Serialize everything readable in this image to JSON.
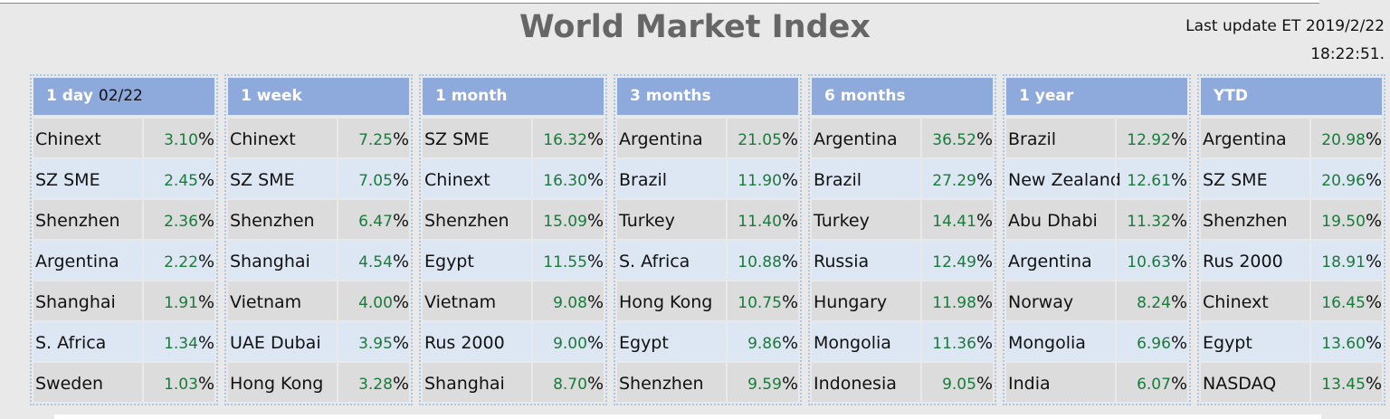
{
  "header": {
    "title": "World Market Index",
    "update_label": "Last update ET 2019/2/22",
    "update_time": "18:22:51."
  },
  "unit": "%",
  "panels": [
    {
      "label": "1 day",
      "date": "02/22",
      "rows": [
        [
          "Chinext",
          "3.10"
        ],
        [
          "SZ SME",
          "2.45"
        ],
        [
          "Shenzhen",
          "2.36"
        ],
        [
          "Argentina",
          "2.22"
        ],
        [
          "Shanghai",
          "1.91"
        ],
        [
          "S. Africa",
          "1.34"
        ],
        [
          "Sweden",
          "1.03"
        ]
      ]
    },
    {
      "label": "1 week",
      "rows": [
        [
          "Chinext",
          "7.25"
        ],
        [
          "SZ SME",
          "7.05"
        ],
        [
          "Shenzhen",
          "6.47"
        ],
        [
          "Shanghai",
          "4.54"
        ],
        [
          "Vietnam",
          "4.00"
        ],
        [
          "UAE Dubai",
          "3.95"
        ],
        [
          "Hong Kong",
          "3.28"
        ]
      ]
    },
    {
      "label": "1 month",
      "rows": [
        [
          "SZ SME",
          "16.32"
        ],
        [
          "Chinext",
          "16.30"
        ],
        [
          "Shenzhen",
          "15.09"
        ],
        [
          "Egypt",
          "11.55"
        ],
        [
          "Vietnam",
          "9.08"
        ],
        [
          "Rus 2000",
          "9.00"
        ],
        [
          "Shanghai",
          "8.70"
        ]
      ]
    },
    {
      "label": "3 months",
      "rows": [
        [
          "Argentina",
          "21.05"
        ],
        [
          "Brazil",
          "11.90"
        ],
        [
          "Turkey",
          "11.40"
        ],
        [
          "S. Africa",
          "10.88"
        ],
        [
          "Hong Kong",
          "10.75"
        ],
        [
          "Egypt",
          "9.86"
        ],
        [
          "Shenzhen",
          "9.59"
        ]
      ]
    },
    {
      "label": "6 months",
      "rows": [
        [
          "Argentina",
          "36.52"
        ],
        [
          "Brazil",
          "27.29"
        ],
        [
          "Turkey",
          "14.41"
        ],
        [
          "Russia",
          "12.49"
        ],
        [
          "Hungary",
          "11.98"
        ],
        [
          "Mongolia",
          "11.36"
        ],
        [
          "Indonesia",
          "9.05"
        ]
      ]
    },
    {
      "label": "1 year",
      "rows": [
        [
          "Brazil",
          "12.92"
        ],
        [
          "New Zealand",
          "12.61"
        ],
        [
          "Abu Dhabi",
          "11.32"
        ],
        [
          "Argentina",
          "10.63"
        ],
        [
          "Norway",
          "8.24"
        ],
        [
          "Mongolia",
          "6.96"
        ],
        [
          "India",
          "6.07"
        ]
      ]
    },
    {
      "label": "YTD",
      "rows": [
        [
          "Argentina",
          "20.98"
        ],
        [
          "SZ SME",
          "20.96"
        ],
        [
          "Shenzhen",
          "19.50"
        ],
        [
          "Rus 2000",
          "18.91"
        ],
        [
          "Chinext",
          "16.45"
        ],
        [
          "Egypt",
          "13.60"
        ],
        [
          "NASDAQ",
          "13.45"
        ]
      ]
    }
  ]
}
